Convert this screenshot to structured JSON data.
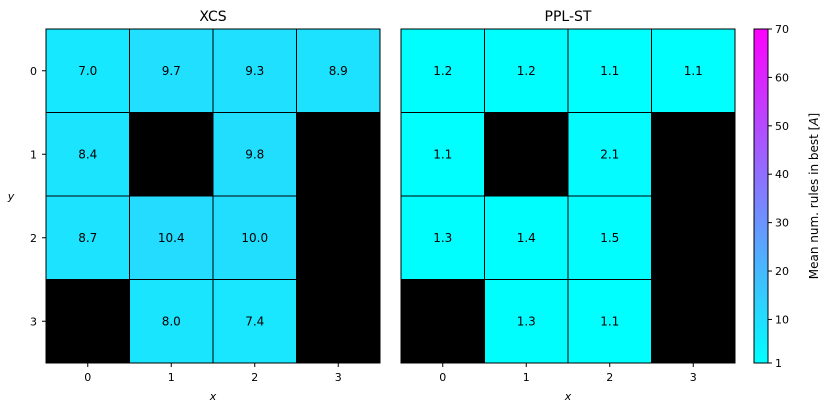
{
  "chart_data": [
    {
      "type": "heatmap",
      "title": "XCS",
      "xlabel": "x",
      "ylabel": "y",
      "x_ticks": [
        "0",
        "1",
        "2",
        "3"
      ],
      "y_ticks": [
        "0",
        "1",
        "2",
        "3"
      ],
      "values": [
        [
          7.0,
          9.7,
          9.3,
          8.9
        ],
        [
          8.4,
          null,
          9.8,
          null
        ],
        [
          8.7,
          10.4,
          10.0,
          null
        ],
        [
          null,
          8.0,
          7.4,
          null
        ]
      ],
      "labels": [
        [
          "7.0",
          "9.7",
          "9.3",
          "8.9"
        ],
        [
          "8.4",
          "",
          "9.8",
          ""
        ],
        [
          "8.7",
          "10.4",
          "10.0",
          ""
        ],
        [
          "",
          "8.0",
          "7.4",
          ""
        ]
      ],
      "missing_color": "#000000"
    },
    {
      "type": "heatmap",
      "title": "PPL-ST",
      "xlabel": "x",
      "ylabel": "",
      "x_ticks": [
        "0",
        "1",
        "2",
        "3"
      ],
      "y_ticks": [],
      "values": [
        [
          1.2,
          1.2,
          1.1,
          1.1
        ],
        [
          1.1,
          null,
          2.1,
          null
        ],
        [
          1.3,
          1.4,
          1.5,
          null
        ],
        [
          null,
          1.3,
          1.1,
          null
        ]
      ],
      "labels": [
        [
          "1.2",
          "1.2",
          "1.1",
          "1.1"
        ],
        [
          "1.1",
          "",
          "2.1",
          ""
        ],
        [
          "1.3",
          "1.4",
          "1.5",
          ""
        ],
        [
          "",
          "1.3",
          "1.1",
          ""
        ]
      ],
      "missing_color": "#000000"
    }
  ],
  "colorbar": {
    "label": "Mean num. rules in best [A]",
    "min": 1,
    "max": 70,
    "ticks": [
      "1",
      "10",
      "20",
      "30",
      "40",
      "50",
      "60",
      "70"
    ],
    "colormap": "cool",
    "color_min": "#00ffff",
    "color_max": "#ff00ff"
  }
}
